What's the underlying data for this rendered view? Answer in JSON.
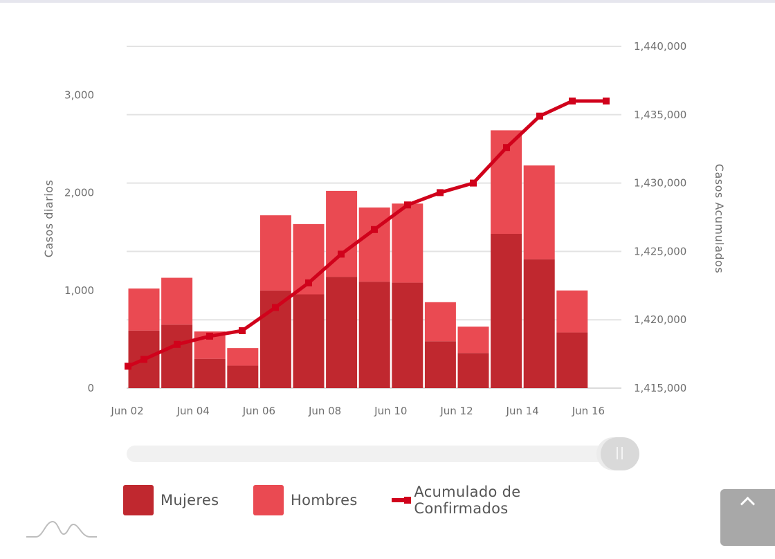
{
  "chart_data": {
    "type": "bar",
    "stacked": true,
    "categories": [
      "Jun 02",
      "Jun 03",
      "Jun 04",
      "Jun 05",
      "Jun 06",
      "Jun 07",
      "Jun 08",
      "Jun 09",
      "Jun 10",
      "Jun 11",
      "Jun 12",
      "Jun 13",
      "Jun 14",
      "Jun 15"
    ],
    "x_tick_labels": [
      "Jun 02",
      "Jun 04",
      "Jun 06",
      "Jun 08",
      "Jun 10",
      "Jun 12",
      "Jun 14",
      "Jun 16"
    ],
    "left_axis": {
      "label": "Casos diarios",
      "ticks": [
        "0",
        "1,000",
        "2,000",
        "3,000"
      ],
      "ylim": [
        0,
        3500
      ]
    },
    "right_axis": {
      "label": "Casos Acumulados",
      "ticks": [
        "1,415,000",
        "1,420,000",
        "1,425,000",
        "1,430,000",
        "1,435,000",
        "1,440,000"
      ],
      "ylim": [
        1415000,
        1440000
      ]
    },
    "series": [
      {
        "name": "Mujeres",
        "type": "bar",
        "color": "#c0282f",
        "values": [
          590,
          650,
          300,
          230,
          1000,
          960,
          1140,
          1090,
          1080,
          480,
          360,
          1580,
          1320,
          570
        ]
      },
      {
        "name": "Hombres",
        "type": "bar",
        "color": "#ea4a52",
        "values": [
          430,
          480,
          280,
          180,
          770,
          720,
          880,
          760,
          810,
          400,
          270,
          1060,
          960,
          430
        ]
      },
      {
        "name": "Acumulado de Confirmados",
        "type": "line",
        "color": "#d0021b",
        "x": [
          "Jun 02",
          "Jun 02.5",
          "Jun 03",
          "Jun 04",
          "Jun 05",
          "Jun 06",
          "Jun 07",
          "Jun 08",
          "Jun 09",
          "Jun 10",
          "Jun 11",
          "Jun 12",
          "Jun 13",
          "Jun 14",
          "Jun 15",
          "Jun 16"
        ],
        "values": [
          1416600,
          1417100,
          1418200,
          1418800,
          1419200,
          1420900,
          1422700,
          1424800,
          1426600,
          1428400,
          1429300,
          1430000,
          1432600,
          1434900,
          1436000,
          1436000
        ]
      }
    ],
    "legend_position": "bottom",
    "grid": true
  },
  "slider": {
    "value": 1.0
  },
  "icons": {
    "zoom": "mountain-icon",
    "scroll_top": "chevron-up-icon"
  }
}
